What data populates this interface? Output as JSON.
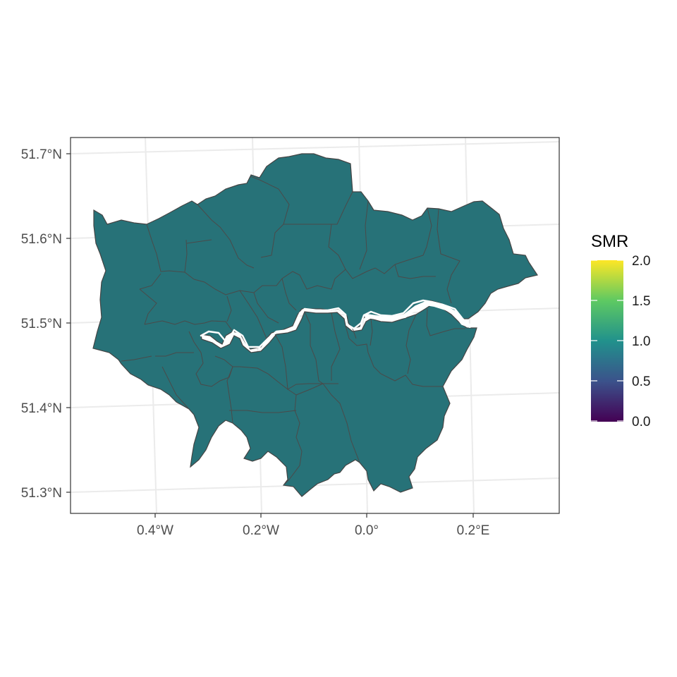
{
  "map": {
    "region": "Greater London boroughs",
    "fill_color": "#277278",
    "border_color": "#444444",
    "river_color": "#ffffff",
    "graticule_color": "#ebebeb",
    "panel_border_color": "#333333"
  },
  "axes": {
    "x_ticks": [
      "0.4°W",
      "0.2°W",
      "0.0°",
      "0.2°E"
    ],
    "y_ticks": [
      "51.7°N",
      "51.6°N",
      "51.5°N",
      "51.4°N",
      "51.3°N"
    ]
  },
  "legend": {
    "title": "SMR",
    "labels": [
      "2.0",
      "1.5",
      "1.0",
      "0.5",
      "0.0"
    ],
    "palette": "viridis",
    "colors": [
      "#440154",
      "#3b528b",
      "#21918c",
      "#5ec962",
      "#fde725"
    ],
    "range": [
      0,
      2
    ]
  },
  "chart_data": {
    "type": "choropleth",
    "variable": "SMR",
    "value_range": [
      0,
      2
    ],
    "all_boroughs_value": 1.0
  }
}
